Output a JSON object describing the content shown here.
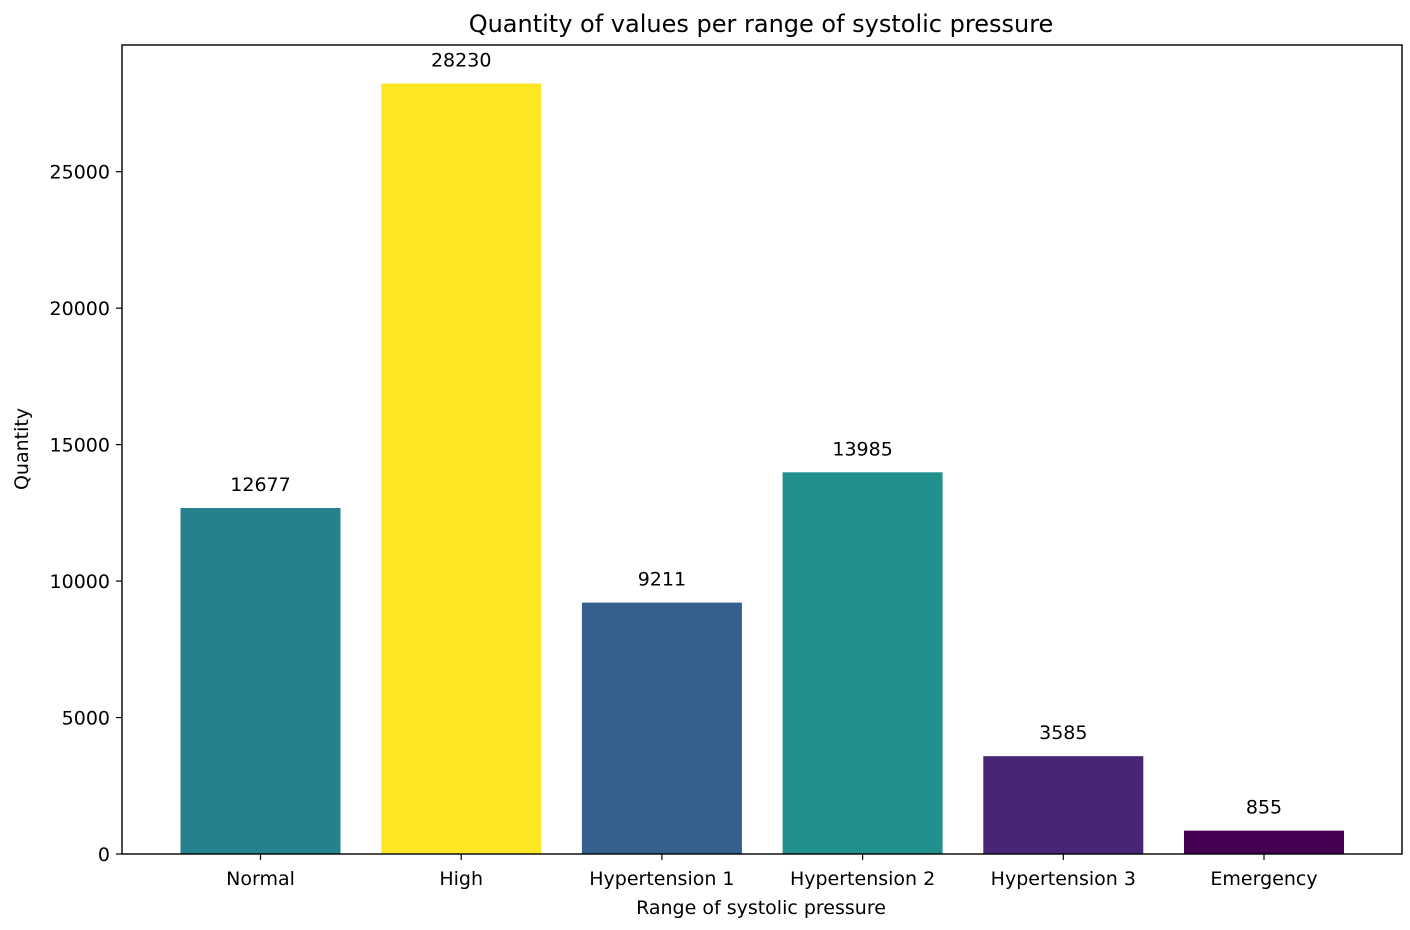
{
  "chart_data": {
    "type": "bar",
    "title": "Quantity of values per range of systolic pressure",
    "xlabel": "Range of systolic pressure",
    "ylabel": "Quantity",
    "categories": [
      "Normal",
      "High",
      "Hypertension 1",
      "Hypertension 2",
      "Hypertension 3",
      "Emergency"
    ],
    "values": [
      12677,
      28230,
      9211,
      13985,
      3585,
      855
    ],
    "data_labels": [
      "12677",
      "28230",
      "9211",
      "13985",
      "3585",
      "855"
    ],
    "colors": [
      "#26818e",
      "#fde725",
      "#355f8d",
      "#21908d",
      "#482575",
      "#440154"
    ],
    "yticks": [
      0,
      5000,
      10000,
      15000,
      20000,
      25000
    ],
    "ylim": [
      0,
      29641.5
    ],
    "grid": false
  }
}
